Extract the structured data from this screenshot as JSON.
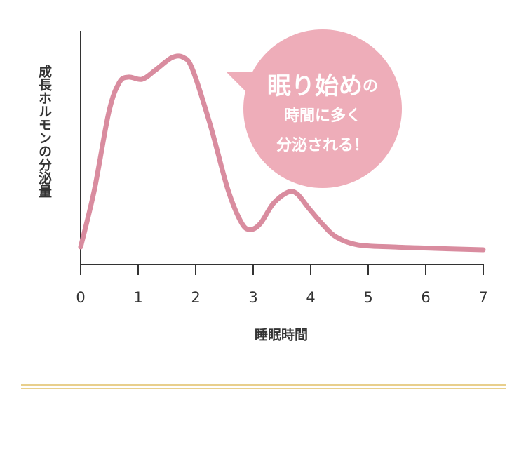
{
  "chart_data": {
    "type": "line",
    "ylabel": "成長ホルモンの分泌量",
    "xlabel": "睡眠時間",
    "x": [
      0,
      0.24,
      0.49,
      0.67,
      0.83,
      1.07,
      1.3,
      1.59,
      1.79,
      1.95,
      2.26,
      2.56,
      2.8,
      2.96,
      3.13,
      3.35,
      3.6,
      3.76,
      3.96,
      4.21,
      4.45,
      4.82,
      5.43,
      6.16,
      7.0
    ],
    "series": [
      {
        "color": "#d98c9f",
        "values": [
          7.5,
          32.1,
          65.2,
          77.8,
          80.2,
          79.3,
          83.2,
          88.6,
          88.6,
          83.2,
          59.2,
          32.1,
          17.7,
          15.0,
          17.7,
          26.1,
          30.9,
          30.3,
          24.3,
          17.1,
          11.7,
          8.4,
          7.5,
          6.9,
          6.3
        ]
      }
    ],
    "xlim": [
      0,
      7
    ],
    "ylim": [
      0,
      100
    ],
    "xticks": [
      0,
      1,
      2,
      3,
      4,
      5,
      6,
      7
    ],
    "annotation": {
      "color": "#eeadb9",
      "lines": [
        "眠り始め",
        "の",
        "時間に多く",
        "分泌される！"
      ]
    }
  }
}
